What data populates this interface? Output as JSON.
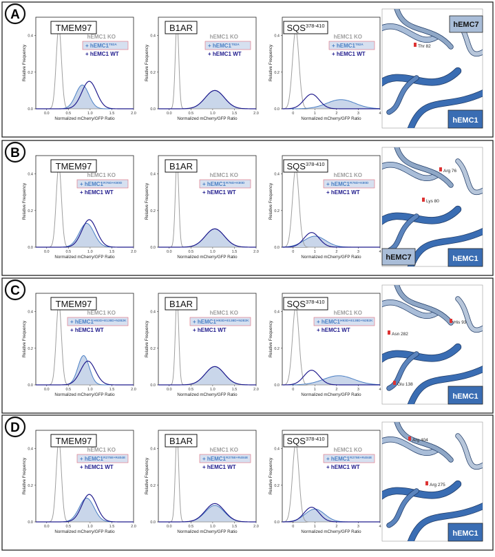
{
  "figure": {
    "x_label": "Normalized mCherry/GFP Ratio",
    "y_label": "Relative Frequency",
    "legend_ko": "hEMC1 KO",
    "legend_wt": "+ hEMC1 WT",
    "legend_mut_prefix": "+ hEMC1",
    "colors": {
      "ko": "#9e9e9e",
      "mutant": "#4a7fc4",
      "mutant_fill": "#c9d6ea",
      "wt": "#1f1a8c",
      "emc1": "#3a6db3",
      "emc7": "#a9bdd8"
    }
  },
  "panels": [
    {
      "letter": "A",
      "mutation": "T82A",
      "structure": {
        "labels": [
          "Thr 82"
        ],
        "chain_top": "hEMC7",
        "chain_bottom": "hEMC1"
      },
      "charts": [
        {
          "name": "TMEM97",
          "sup": "",
          "xlim": [
            -0.25,
            2.0
          ],
          "ylim": [
            0,
            0.5
          ],
          "xticks": [
            0.0,
            0.5,
            1.0,
            1.5,
            2.0
          ],
          "yticks": [
            0.0,
            0.2,
            0.4
          ]
        },
        {
          "name": "B1AR",
          "sup": "",
          "xlim": [
            -0.25,
            2.0
          ],
          "ylim": [
            0,
            0.5
          ],
          "xticks": [
            0.0,
            0.5,
            1.0,
            1.5,
            2.0
          ],
          "yticks": [
            0.0,
            0.2,
            0.4
          ]
        },
        {
          "name": "SQS",
          "sup": "378-410",
          "xlim": [
            -0.5,
            4.0
          ],
          "ylim": [
            0,
            0.5
          ],
          "xticks": [
            0,
            1,
            2,
            3,
            4
          ],
          "yticks": [
            0.0,
            0.2,
            0.4
          ]
        }
      ]
    },
    {
      "letter": "B",
      "mutation": "R76D+K80D",
      "structure": {
        "labels": [
          "Arg 76",
          "Lys 80"
        ],
        "chain_top": "hEMC7",
        "chain_bottom": "hEMC1"
      },
      "charts": [
        {
          "name": "TMEM97",
          "sup": "",
          "xlim": [
            -0.25,
            2.0
          ],
          "ylim": [
            0,
            0.5
          ],
          "xticks": [
            0.0,
            0.5,
            1.0,
            1.5,
            2.0
          ],
          "yticks": [
            0.0,
            0.2,
            0.4
          ]
        },
        {
          "name": "B1AR",
          "sup": "",
          "xlim": [
            -0.25,
            2.0
          ],
          "ylim": [
            0,
            0.5
          ],
          "xticks": [
            0.0,
            0.5,
            1.0,
            1.5,
            2.0
          ],
          "yticks": [
            0.0,
            0.2,
            0.4
          ]
        },
        {
          "name": "SQS",
          "sup": "378-410",
          "xlim": [
            -0.5,
            4.0
          ],
          "ylim": [
            0,
            0.5
          ],
          "xticks": [
            0,
            1,
            2,
            3,
            4
          ],
          "yticks": [
            0.0,
            0.2,
            0.4
          ]
        }
      ]
    },
    {
      "letter": "C",
      "mutation": "H93D+E138D+N282K",
      "structure": {
        "labels": [
          "His 93",
          "Asn 282",
          "Glu 138"
        ],
        "chain_top": "",
        "chain_bottom": "hEMC1"
      },
      "charts": [
        {
          "name": "TMEM97",
          "sup": "",
          "xlim": [
            -0.25,
            2.0
          ],
          "ylim": [
            0,
            0.5
          ],
          "xticks": [
            0.0,
            0.5,
            1.0,
            1.5,
            2.0
          ],
          "yticks": [
            0.0,
            0.2,
            0.4
          ]
        },
        {
          "name": "B1AR",
          "sup": "",
          "xlim": [
            -0.25,
            2.0
          ],
          "ylim": [
            0,
            0.5
          ],
          "xticks": [
            0.0,
            0.5,
            1.0,
            1.5,
            2.0
          ],
          "yticks": [
            0.0,
            0.2,
            0.4
          ]
        },
        {
          "name": "SQS",
          "sup": "378-410",
          "xlim": [
            -0.5,
            4.0
          ],
          "ylim": [
            0,
            0.5
          ],
          "xticks": [
            0,
            1,
            2,
            3,
            4
          ],
          "yticks": [
            0.0,
            0.2,
            0.4
          ]
        }
      ]
    },
    {
      "letter": "D",
      "mutation": "R275E+R404E",
      "structure": {
        "labels": [
          "Arg 404",
          "Arg 275"
        ],
        "chain_top": "",
        "chain_bottom": "hEMC1"
      },
      "charts": [
        {
          "name": "TMEM97",
          "sup": "",
          "xlim": [
            -0.25,
            2.0
          ],
          "ylim": [
            0,
            0.5
          ],
          "xticks": [
            0.0,
            0.5,
            1.0,
            1.5,
            2.0
          ],
          "yticks": [
            0.0,
            0.2,
            0.4
          ]
        },
        {
          "name": "B1AR",
          "sup": "",
          "xlim": [
            -0.25,
            2.0
          ],
          "ylim": [
            0,
            0.5
          ],
          "xticks": [
            0.0,
            0.5,
            1.0,
            1.5,
            2.0
          ],
          "yticks": [
            0.0,
            0.2,
            0.4
          ]
        },
        {
          "name": "SQS",
          "sup": "378-410",
          "xlim": [
            -0.5,
            4.0
          ],
          "ylim": [
            0,
            0.5
          ],
          "xticks": [
            0,
            1,
            2,
            3,
            4
          ],
          "yticks": [
            0.0,
            0.2,
            0.4
          ]
        }
      ]
    }
  ],
  "chart_data": {
    "type": "area",
    "description_units": "density curves given as Gaussian components [amplitude, center, sigma] in data units",
    "curves": {
      "A": {
        "TMEM97": {
          "ko": [
            [
              0.45,
              0.28,
              0.06
            ]
          ],
          "mutant": [
            [
              0.13,
              0.82,
              0.15
            ]
          ],
          "wt": [
            [
              0.15,
              0.98,
              0.17
            ]
          ]
        },
        "B1AR": {
          "ko": [
            [
              0.48,
              0.18,
              0.04
            ]
          ],
          "mutant": [
            [
              0.1,
              1.05,
              0.22
            ]
          ],
          "wt": [
            [
              0.1,
              1.05,
              0.22
            ]
          ]
        },
        "SQS": {
          "ko": [
            [
              0.43,
              0.12,
              0.15
            ]
          ],
          "mutant": [
            [
              0.05,
              2.2,
              0.65
            ]
          ],
          "wt": [
            [
              0.08,
              0.85,
              0.35
            ]
          ]
        }
      },
      "B": {
        "TMEM97": {
          "ko": [
            [
              0.45,
              0.28,
              0.06
            ]
          ],
          "mutant": [
            [
              0.13,
              0.92,
              0.17
            ]
          ],
          "wt": [
            [
              0.15,
              0.98,
              0.17
            ]
          ]
        },
        "B1AR": {
          "ko": [
            [
              0.48,
              0.18,
              0.04
            ]
          ],
          "mutant": [
            [
              0.1,
              1.05,
              0.22
            ]
          ],
          "wt": [
            [
              0.1,
              1.05,
              0.22
            ]
          ]
        },
        "SQS": {
          "ko": [
            [
              0.43,
              0.12,
              0.15
            ]
          ],
          "mutant": [
            [
              0.06,
              1.0,
              0.5
            ]
          ],
          "wt": [
            [
              0.08,
              0.85,
              0.35
            ]
          ]
        }
      },
      "C": {
        "TMEM97": {
          "ko": [
            [
              0.45,
              0.28,
              0.06
            ]
          ],
          "mutant": [
            [
              0.16,
              0.85,
              0.13
            ]
          ],
          "wt": [
            [
              0.13,
              0.95,
              0.17
            ]
          ]
        },
        "B1AR": {
          "ko": [
            [
              0.48,
              0.18,
              0.04
            ]
          ],
          "mutant": [
            [
              0.1,
              1.05,
              0.22
            ]
          ],
          "wt": [
            [
              0.1,
              1.05,
              0.22
            ]
          ]
        },
        "SQS": {
          "ko": [
            [
              0.43,
              0.12,
              0.15
            ]
          ],
          "mutant": [
            [
              0.05,
              2.1,
              0.7
            ]
          ],
          "wt": [
            [
              0.08,
              0.85,
              0.35
            ]
          ]
        }
      },
      "D": {
        "TMEM97": {
          "ko": [
            [
              0.45,
              0.28,
              0.06
            ]
          ],
          "mutant": [
            [
              0.13,
              0.92,
              0.17
            ]
          ],
          "wt": [
            [
              0.15,
              0.98,
              0.17
            ]
          ]
        },
        "B1AR": {
          "ko": [
            [
              0.48,
              0.18,
              0.04
            ]
          ],
          "mutant": [
            [
              0.09,
              1.05,
              0.22
            ]
          ],
          "wt": [
            [
              0.1,
              1.05,
              0.22
            ]
          ]
        },
        "SQS": {
          "ko": [
            [
              0.43,
              0.12,
              0.15
            ]
          ],
          "mutant": [
            [
              0.07,
              1.0,
              0.45
            ]
          ],
          "wt": [
            [
              0.08,
              0.85,
              0.35
            ]
          ]
        }
      }
    }
  }
}
